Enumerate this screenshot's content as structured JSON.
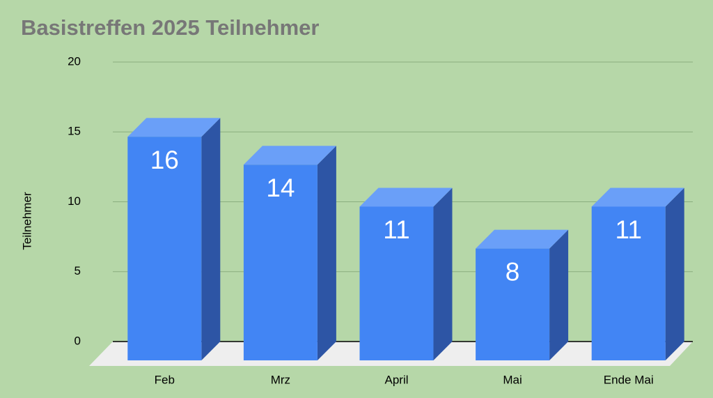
{
  "chart_data": {
    "type": "bar3d",
    "title": "Basistreffen 2025 Teilnehmer",
    "y_label": "Teilnehmer",
    "categories": [
      "Feb",
      "Mrz",
      "April",
      "Mai",
      "Ende Mai"
    ],
    "values": [
      16,
      14,
      11,
      8,
      11
    ],
    "color": "#4285f4",
    "ylim": [
      0,
      20
    ],
    "yticks": [
      0,
      5,
      10,
      15,
      20
    ],
    "grid": true
  }
}
